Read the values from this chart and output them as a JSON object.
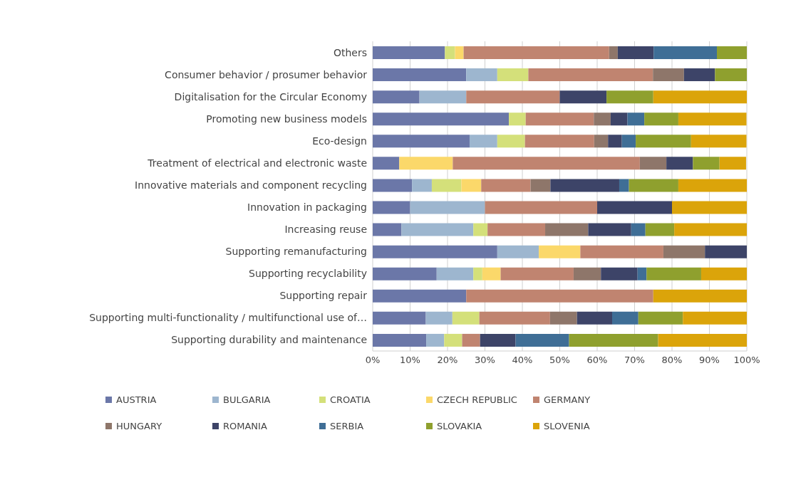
{
  "chart_data": {
    "type": "bar",
    "orientation": "horizontal",
    "stacked": true,
    "grid": "x",
    "legend": "bottom",
    "categories": [
      "Others",
      "Consumer behavior / prosumer behavior",
      "Digitalisation for the Circular Economy",
      "Promoting new business models",
      "Eco-design",
      "Treatment of electrical and electronic waste",
      "Innovative materials and component recycling",
      "Innovation in packaging",
      "Increasing reuse",
      "Supporting remanufacturing",
      "Supporting recyclability",
      "Supporting repair",
      "Supporting multi-functionality / multifunctional use of…",
      "Supporting durability and maintenance"
    ],
    "xlim": [
      0,
      100
    ],
    "xticks": [
      {
        "value": 0,
        "label": "0%"
      },
      {
        "value": 10,
        "label": "10%"
      },
      {
        "value": 20,
        "label": "20%"
      },
      {
        "value": 30,
        "label": "30%"
      },
      {
        "value": 40,
        "label": "40%"
      },
      {
        "value": 50,
        "label": "50%"
      },
      {
        "value": 60,
        "label": "60%"
      },
      {
        "value": 70,
        "label": "70%"
      },
      {
        "value": 80,
        "label": "80%"
      },
      {
        "value": 90,
        "label": "90%"
      },
      {
        "value": 100,
        "label": "100%"
      }
    ],
    "series": [
      {
        "name": "AUSTRIA",
        "color": "#6b77a8",
        "values": [
          19.3,
          25,
          12.5,
          36.4,
          25.9,
          7.1,
          10.5,
          10,
          7.7,
          33.3,
          17.1,
          25,
          14.2,
          14.3
        ]
      },
      {
        "name": "BULGARIA",
        "color": "#9db6cf",
        "values": [
          0,
          8.3,
          12.5,
          0,
          7.4,
          0,
          5.3,
          20,
          19.2,
          11.1,
          9.8,
          0,
          7.1,
          4.8
        ]
      },
      {
        "name": "CROATIA",
        "color": "#d4e07a",
        "values": [
          2.7,
          8.3,
          0,
          4.5,
          7.4,
          0,
          7.9,
          0,
          3.8,
          0,
          2.4,
          0,
          7.2,
          4.8
        ]
      },
      {
        "name": "CZECH REPUBLIC",
        "color": "#fbd86a",
        "values": [
          2.3,
          0,
          0,
          0,
          0,
          14.3,
          5.3,
          0,
          0,
          11.1,
          4.9,
          0,
          0,
          0
        ]
      },
      {
        "name": "GERMANY",
        "color": "#c08470",
        "values": [
          38.9,
          33.3,
          25,
          18.2,
          18.5,
          50,
          13.2,
          30,
          15.4,
          22.2,
          19.5,
          50,
          18.9,
          4.8
        ]
      },
      {
        "name": "HUNGARY",
        "color": "#8e766a",
        "values": [
          2.3,
          8.3,
          0,
          4.5,
          3.7,
          7.1,
          5.3,
          0,
          11.5,
          11.1,
          7.3,
          0,
          7.2,
          0
        ]
      },
      {
        "name": "ROMANIA",
        "color": "#3d4468",
        "values": [
          9.6,
          8.3,
          12.5,
          4.5,
          3.7,
          7.1,
          18.4,
          20,
          11.5,
          11.2,
          9.8,
          0,
          9.4,
          9.5
        ]
      },
      {
        "name": "SERBIA",
        "color": "#3f6e96",
        "values": [
          16.9,
          0,
          0,
          4.5,
          3.7,
          0,
          2.6,
          0,
          3.8,
          0,
          2.4,
          0,
          7,
          14.3
        ]
      },
      {
        "name": "SLOVAKIA",
        "color": "#8fa02e",
        "values": [
          8,
          8.5,
          12.5,
          9.1,
          14.8,
          7.1,
          13.2,
          0,
          7.7,
          0,
          14.6,
          0,
          11.9,
          23.8
        ]
      },
      {
        "name": "SLOVENIA",
        "color": "#dba40a",
        "values": [
          0,
          0,
          25,
          18.2,
          14.8,
          7.1,
          18.3,
          20,
          19.4,
          0,
          12.2,
          25,
          17.1,
          23.8
        ]
      }
    ]
  }
}
